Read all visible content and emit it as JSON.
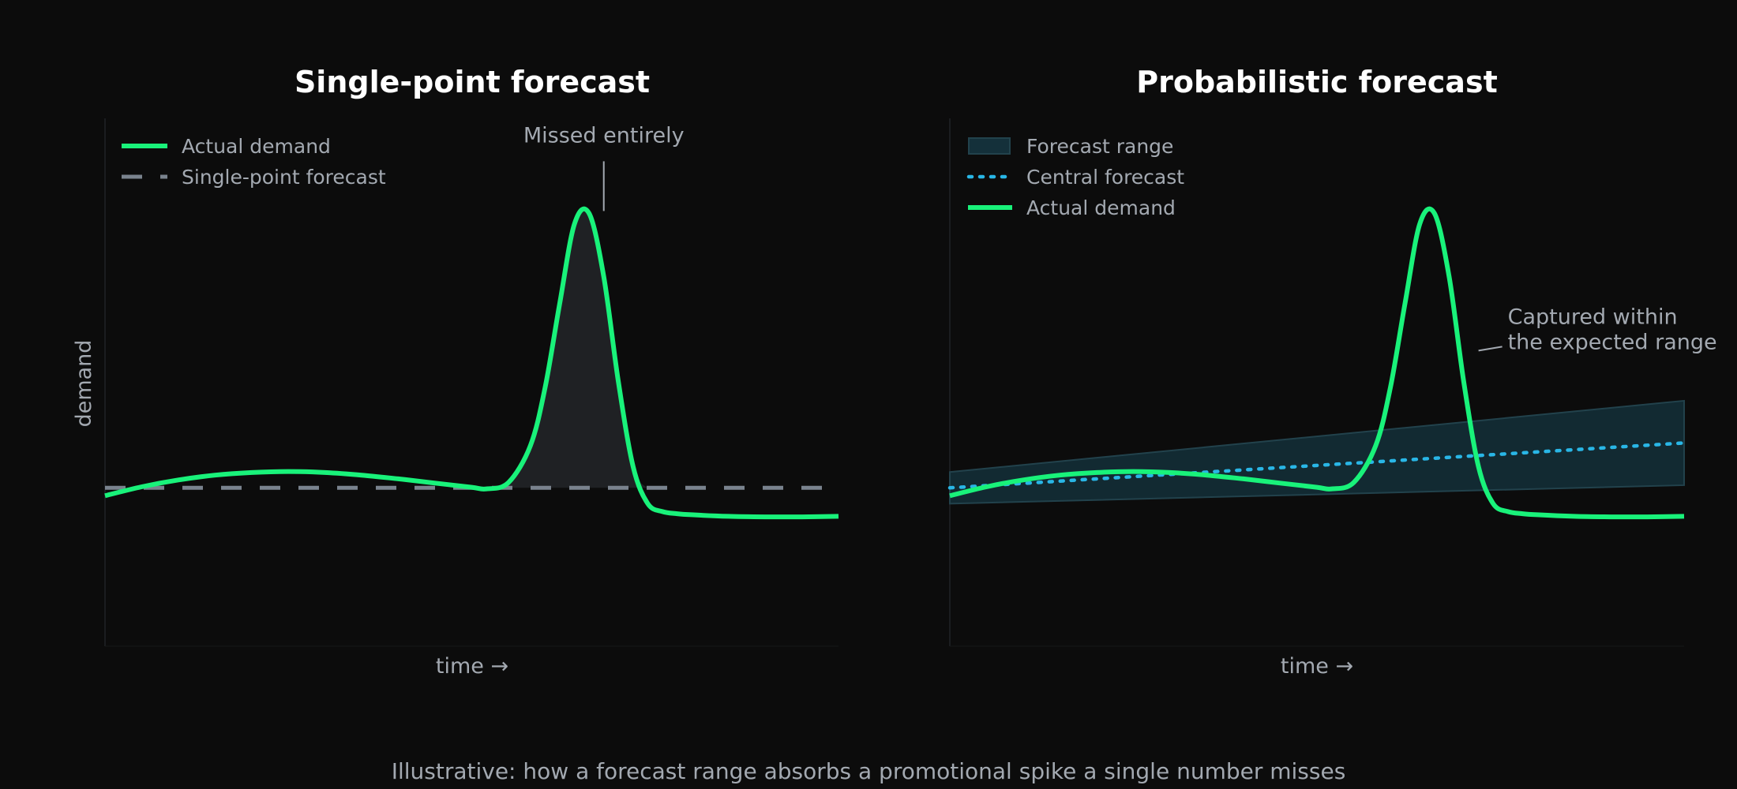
{
  "caption": "Illustrative: how a forecast range absorbs a promotional spike a single number misses",
  "colors": {
    "background": "#0c0c0c",
    "actual": "#19f27a",
    "point_forecast": "#7a838e",
    "central_forecast": "#29b6e6",
    "range_fill": "#14303a",
    "range_edge": "#22424c",
    "spike_fill": "#1f2124",
    "axis_line": "#1b1d20",
    "text": "#a3a9b1"
  },
  "chart_data": [
    {
      "type": "line",
      "title": "Single-point forecast",
      "xlabel": "time →",
      "ylabel": "demand",
      "xlim": [
        0,
        100
      ],
      "ylim": [
        0,
        100
      ],
      "grid": false,
      "legend_position": "top-left",
      "legend": [
        {
          "label": "Actual demand",
          "style": "solid"
        },
        {
          "label": "Single-point forecast",
          "style": "dashed"
        }
      ],
      "series": [
        {
          "name": "Actual demand",
          "x": [
            0,
            5,
            10,
            15,
            20,
            25,
            30,
            35,
            40,
            45,
            50,
            52,
            55,
            58,
            60,
            62,
            64,
            66,
            68,
            70,
            72,
            74,
            76,
            78,
            80,
            85,
            90,
            95,
            100
          ],
          "y": [
            28.5,
            30.2,
            31.5,
            32.4,
            32.9,
            33.1,
            32.9,
            32.4,
            31.7,
            30.9,
            30.1,
            29.8,
            31.0,
            38.0,
            49.0,
            65.0,
            80.0,
            82.0,
            70.0,
            50.0,
            34.0,
            27.0,
            25.5,
            25.1,
            24.9,
            24.6,
            24.5,
            24.5,
            24.6
          ]
        },
        {
          "name": "Single-point forecast",
          "x": [
            0,
            100
          ],
          "y": [
            30,
            30
          ]
        }
      ],
      "annotations": [
        {
          "text": "Missed entirely",
          "x": 68,
          "y": 82
        }
      ]
    },
    {
      "type": "line",
      "title": "Probabilistic forecast",
      "xlabel": "time →",
      "ylabel": "",
      "xlim": [
        0,
        100
      ],
      "ylim": [
        0,
        100
      ],
      "grid": false,
      "legend_position": "top-left",
      "legend": [
        {
          "label": "Forecast range",
          "style": "patch"
        },
        {
          "label": "Central forecast",
          "style": "dotted"
        },
        {
          "label": "Actual demand",
          "style": "solid"
        }
      ],
      "band": {
        "name": "Forecast range",
        "x": [
          0,
          100
        ],
        "lower": [
          27.0,
          30.5
        ],
        "upper": [
          33.0,
          46.5
        ]
      },
      "series": [
        {
          "name": "Central forecast",
          "x": [
            0,
            100
          ],
          "y": [
            30.0,
            38.5
          ]
        },
        {
          "name": "Actual demand",
          "x": [
            0,
            5,
            10,
            15,
            20,
            25,
            30,
            35,
            40,
            45,
            50,
            52,
            55,
            58,
            60,
            62,
            64,
            66,
            68,
            70,
            72,
            74,
            76,
            78,
            80,
            85,
            90,
            95,
            100
          ],
          "y": [
            28.5,
            30.2,
            31.5,
            32.4,
            32.9,
            33.1,
            32.9,
            32.4,
            31.7,
            30.9,
            30.1,
            29.8,
            31.0,
            38.0,
            49.0,
            65.0,
            80.0,
            82.0,
            70.0,
            50.0,
            34.0,
            27.0,
            25.5,
            25.1,
            24.9,
            24.6,
            24.5,
            24.5,
            24.6
          ]
        }
      ],
      "annotations": [
        {
          "text": "Captured within",
          "text2": "the expected range",
          "x": 72,
          "y": 56
        }
      ]
    }
  ]
}
